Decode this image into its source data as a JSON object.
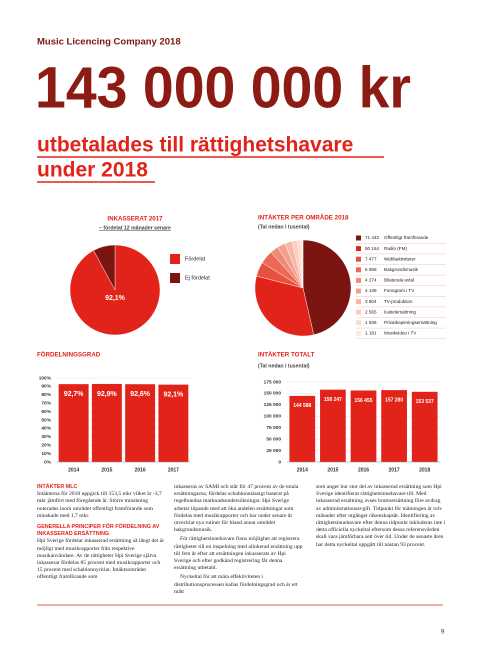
{
  "header": {
    "title": "Music Licencing Company 2018"
  },
  "hero": {
    "amount": "143 000 000 kr",
    "subtitle": [
      "utbetalades till rättighetshavare",
      "under 2018"
    ]
  },
  "chart_data": [
    {
      "type": "pie",
      "title": "INKASSERAT 2017",
      "subtitle": "– fördelat 12 månader senare",
      "categories": [
        "Fördelat",
        "Ej fördelat"
      ],
      "values": [
        92.1,
        7.9
      ],
      "value_labels": [
        "92,1%",
        null
      ],
      "colors": [
        "#e2231a",
        "#7a1511"
      ]
    },
    {
      "type": "pie",
      "title": "INTÄKTER PER OMRÅDE 2018",
      "subtitle": "(Tal nedan i tusental)",
      "categories": [
        "Offentligt framförande",
        "Radio (FM)",
        "Webbaktiviteter",
        "Bakgrundsmusik",
        "Bilaterala avtal",
        "Fonogram i TV",
        "TV-produktion",
        "Kabelersättning",
        "Privatkopieringsersättning",
        "Musikvideo i TV"
      ],
      "values": [
        71442,
        50164,
        7477,
        6958,
        4274,
        4139,
        3804,
        2565,
        1936,
        1181
      ],
      "value_labels": [
        "71 442",
        "50 164",
        "7 477",
        "6 958",
        "4 274",
        "4 139",
        "3 804",
        "2 565",
        "1 936",
        "1 181"
      ],
      "colors": [
        "#7a1511",
        "#e2231a",
        "#e8503f",
        "#ec6a55",
        "#f08a75",
        "#f3a08c",
        "#f6b8a6",
        "#f9cdbf",
        "#fbdcd2",
        "#fde9e3"
      ]
    },
    {
      "type": "bar",
      "title": "FÖRDELNINGSGRAD",
      "categories": [
        "2014",
        "2015",
        "2016",
        "2017"
      ],
      "values": [
        92.7,
        92.9,
        92.6,
        92.1
      ],
      "value_labels": [
        "92,7%",
        "92,9%",
        "92,6%",
        "92,1%"
      ],
      "color": "#e2231a",
      "ylim": [
        0,
        100
      ],
      "yticks": [
        {
          "value": 0,
          "label": "0%"
        },
        {
          "value": 10,
          "label": "10%"
        },
        {
          "value": 20,
          "label": "20%"
        },
        {
          "value": 30,
          "label": "30%"
        },
        {
          "value": 40,
          "label": "40%"
        },
        {
          "value": 50,
          "label": "50%"
        },
        {
          "value": 60,
          "label": "60%"
        },
        {
          "value": 70,
          "label": "70%"
        },
        {
          "value": 80,
          "label": "80%"
        },
        {
          "value": 90,
          "label": "90%"
        },
        {
          "value": 100,
          "label": "100%"
        }
      ],
      "grid": true
    },
    {
      "type": "bar",
      "title": "INTÄKTER TOTALT",
      "subtitle": "(Tal nedan i tusental)",
      "categories": [
        "2014",
        "2015",
        "2016",
        "2017",
        "2018"
      ],
      "values": [
        144588,
        158247,
        156455,
        157280,
        153537
      ],
      "value_labels": [
        "144 588",
        "158 247",
        "156 455",
        "157 280",
        "153 537"
      ],
      "color": "#e2231a",
      "ylim": [
        0,
        175000
      ],
      "yticks": [
        0,
        {
          "value": 25000,
          "label": "25 000"
        },
        {
          "value": 50000,
          "label": "50 000"
        },
        {
          "value": 75000,
          "label": "75 000"
        },
        {
          "value": 100000,
          "label": "100 000"
        },
        {
          "value": 125000,
          "label": "125 000"
        },
        {
          "value": 150000,
          "label": "150 000"
        },
        {
          "value": 175000,
          "label": "175 000"
        }
      ],
      "grid": true
    }
  ],
  "body": {
    "columns": [
      [
        {
          "heading": "INTÄKTER MLC"
        },
        {
          "text": "Intäkterna för 2018 uppgick till 153,5 mkr vilket är -3,7 mkr jämfört med föregående år. Större minskning noterades inom området offentligt framförande som minskade med 1,7 mkr."
        },
        {
          "heading": "GENERELLA PRINCIPER FÖR FÖRDELNING AV INKASSERAD ERSÄTTNING"
        },
        {
          "text": "Hpi Sverige fördelar inkasserad ersättning så långt det är möjligt med musikrapporter från respektive musikanvändare. Av de rättigheter Hpi Sverige själva inkasserar fördelas 85 procent med musikrapporter och 15 procent med schablonnycklar. Intäktsområdet offentligt framförande som"
        }
      ],
      [
        {
          "text": "inkasseras av SAMI och står för 47 procent av de totala ersättningarna, fördelas schablonmässigt baserat på regelbundna marknadsundersökningar. Hpi Sverige arbetar löpande med att öka andelen ersättningar som fördelas med musikrapporter och har under senare år utvecklat nya rutiner för bland annat området bakgrundsmusik."
        },
        {
          "text": "För rättighetsinnehavare finns möjlighet att registrera rättigheter till en inspelning med allokerad ersättning upp till fem år efter att ersättningen inkasserats av Hpi Sverige och efter godkänd registrering får denna ersättning utbetald."
        },
        {
          "text": "Nyckeltal för att mäta effektiviteten i distributionsprocessen kallas fördelningsgrad och är ett mått"
        }
      ],
      [
        {
          "text": "som anger hur stor del av inkasserad ersättning som Hpi Sverige identifierat rättighetsinnehavare till. Med inkasserad ersättning avses bruttoersättning före avdrag av administrationsavgift. Tidpunkt för mätningen är tolv månader efter utgånget räkenskapsår. Identifiering av rättighetsinnehavare efter denna tidpunkt inkluderas inte i detta officiella nyckeltal eftersom dessa referensvärden skall vara jämförbara sett över tid. Under de senaste åren har detta nyckeltal uppgått till nästan 93 procent."
        }
      ]
    ]
  },
  "footer": {
    "page": "9"
  }
}
